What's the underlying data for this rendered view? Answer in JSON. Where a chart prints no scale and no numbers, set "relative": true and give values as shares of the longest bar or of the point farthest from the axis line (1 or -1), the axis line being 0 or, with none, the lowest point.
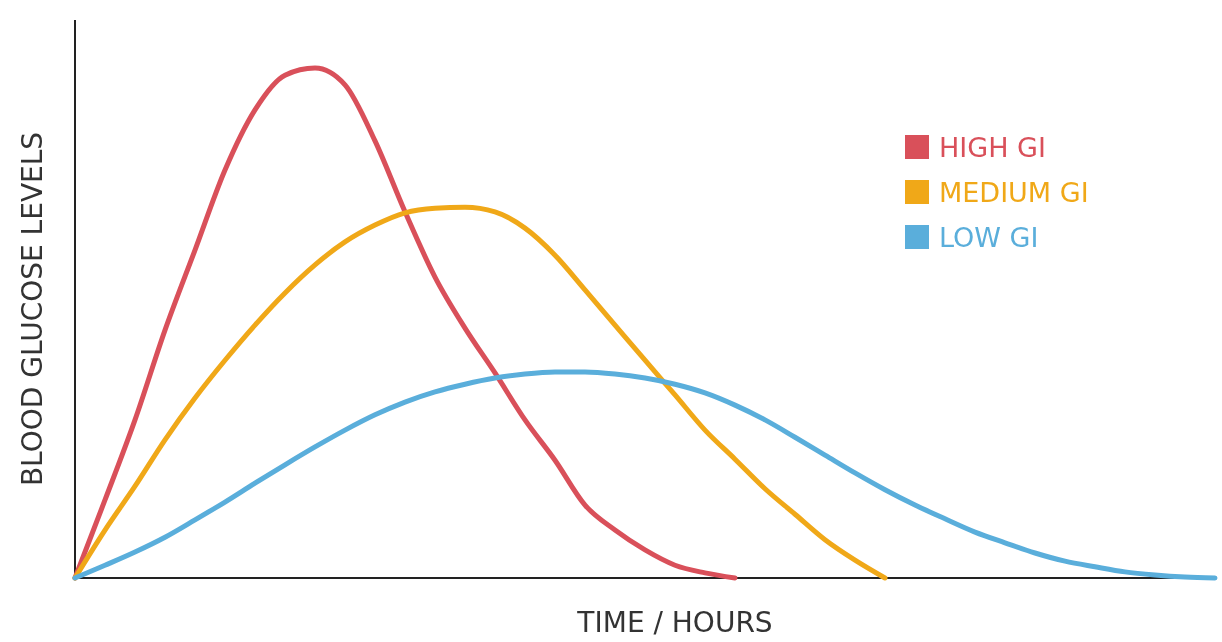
{
  "chart_data": {
    "type": "line",
    "relative": true,
    "xlabel": "TIME / HOURS",
    "ylabel": "BLOOD GLUCOSE LEVELS",
    "legend": "top right",
    "categories": [
      null,
      null,
      null,
      null,
      null,
      null,
      null,
      null,
      null,
      null,
      null,
      null,
      null,
      null,
      null,
      null,
      null,
      null,
      null,
      null,
      null,
      null,
      null,
      null,
      null,
      null,
      null,
      null,
      null,
      null,
      null,
      null,
      null,
      null,
      null,
      null,
      null,
      null,
      null
    ],
    "series": [
      {
        "name": "HIGH GI",
        "color": "#d9505a",
        "values": [
          0,
          0.153,
          0.31,
          0.486,
          0.643,
          0.8,
          0.918,
          0.986,
          1,
          0.967,
          0.857,
          0.718,
          0.59,
          0.49,
          0.402,
          0.31,
          0.231,
          0.143,
          0.094,
          0.055,
          0.025,
          0.01,
          0,
          null,
          null,
          null,
          null,
          null,
          null,
          null,
          null,
          null,
          null,
          null,
          null,
          null,
          null,
          null,
          null
        ]
      },
      {
        "name": "MEDIUM GI",
        "color": "#f0a818",
        "values": [
          0,
          0.094,
          0.18,
          0.271,
          0.353,
          0.427,
          0.496,
          0.559,
          0.614,
          0.659,
          0.692,
          0.716,
          0.725,
          0.727,
          0.718,
          0.686,
          0.633,
          0.565,
          0.496,
          0.427,
          0.359,
          0.29,
          0.233,
          0.175,
          0.125,
          0.075,
          0.035,
          0,
          null,
          null,
          null,
          null,
          null,
          null,
          null,
          null,
          null,
          null,
          null
        ]
      },
      {
        "name": "LOW GI",
        "color": "#5aaedb",
        "values": [
          0,
          0.025,
          0.051,
          0.08,
          0.114,
          0.149,
          0.186,
          0.222,
          0.257,
          0.29,
          0.32,
          0.345,
          0.365,
          0.38,
          0.392,
          0.4,
          0.404,
          0.404,
          0.4,
          0.392,
          0.38,
          0.363,
          0.339,
          0.31,
          0.276,
          0.241,
          0.206,
          0.173,
          0.143,
          0.116,
          0.09,
          0.069,
          0.049,
          0.033,
          0.022,
          0.012,
          0.006,
          0.002,
          0
        ]
      }
    ]
  }
}
